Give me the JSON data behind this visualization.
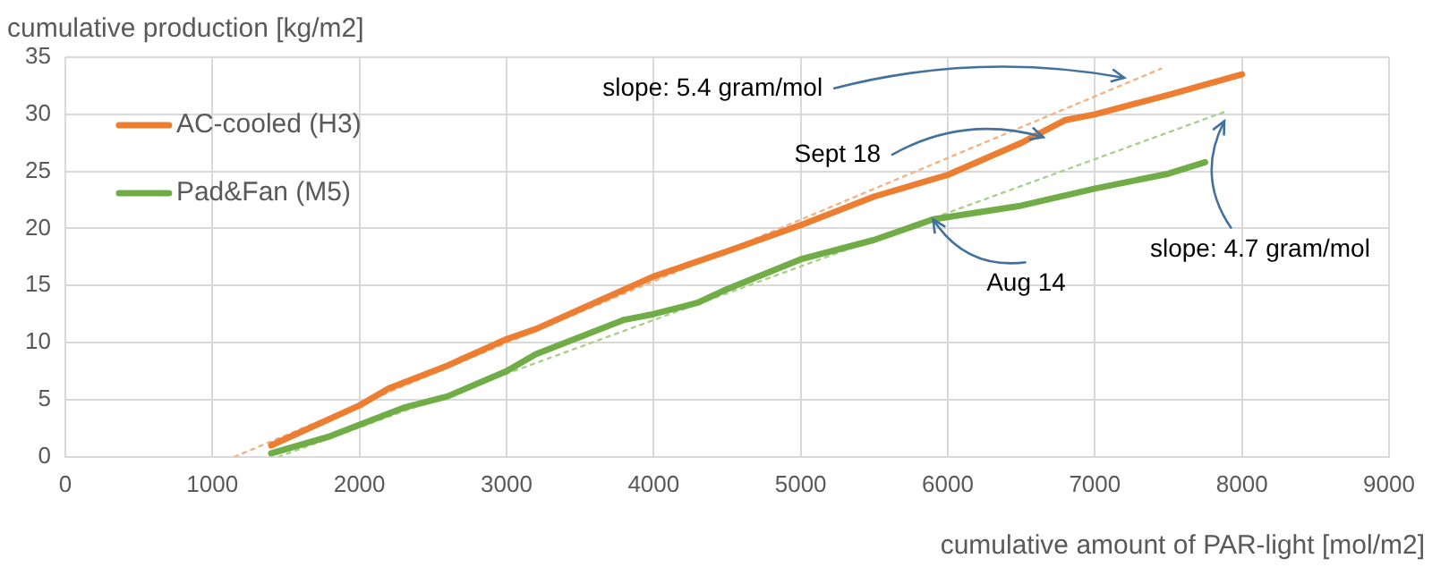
{
  "chart_data": {
    "type": "line",
    "xlabel": "cumulative amount of PAR-light [mol/m2]",
    "ylabel": "cumulative production [kg/m2]",
    "xlim": [
      0,
      9000
    ],
    "xticks": [
      0,
      1000,
      2000,
      3000,
      4000,
      5000,
      6000,
      7000,
      8000,
      9000
    ],
    "ylim": [
      0,
      35
    ],
    "yticks": [
      0,
      5,
      10,
      15,
      20,
      25,
      30,
      35
    ],
    "grid": true,
    "legend": "top left",
    "marker": "none",
    "series": [
      {
        "name": "AC-cooled (H3)",
        "color": "#ed7d31",
        "x": [
          1400,
          2000,
          2200,
          2600,
          3000,
          3200,
          3600,
          4000,
          4500,
          5000,
          5500,
          6000,
          6500,
          6800,
          7000,
          7500,
          8000
        ],
        "values": [
          1,
          4.5,
          6,
          8,
          10.3,
          11.2,
          13.5,
          15.8,
          18,
          20.3,
          22.8,
          24.7,
          27.5,
          29.5,
          30,
          31.7,
          33.5
        ]
      },
      {
        "name": "Pad&Fan (M5)",
        "color": "#70ad47",
        "x": [
          1400,
          1800,
          2000,
          2300,
          2600,
          3000,
          3200,
          3500,
          3800,
          4000,
          4300,
          4500,
          5000,
          5500,
          5900,
          6500,
          7000,
          7500,
          7750
        ],
        "values": [
          0.3,
          1.8,
          2.8,
          4.3,
          5.3,
          7.5,
          9,
          10.5,
          12,
          12.5,
          13.5,
          14.7,
          17.3,
          19,
          20.8,
          22,
          23.5,
          24.8,
          25.8
        ]
      },
      {
        "type": "line",
        "color": "#f4b183",
        "line_style": "dotted",
        "x": [
          1150,
          7450
        ],
        "values": [
          0,
          34
        ]
      },
      {
        "type": "line",
        "color": "#a9d18e",
        "line_style": "dotted",
        "x": [
          1450,
          7900
        ],
        "values": [
          0,
          30.3
        ]
      }
    ],
    "annotations": [
      {
        "text": "slope: 5.4 gram/mol",
        "x": 7200,
        "y": 33.2
      },
      {
        "text": "Sept 18",
        "x": 6650,
        "y": 28
      },
      {
        "text": "slope: 4.7 gram/mol",
        "x": 7880,
        "y": 29.4
      },
      {
        "text": "Aug 14",
        "x": 5900,
        "y": 20.8
      }
    ]
  }
}
